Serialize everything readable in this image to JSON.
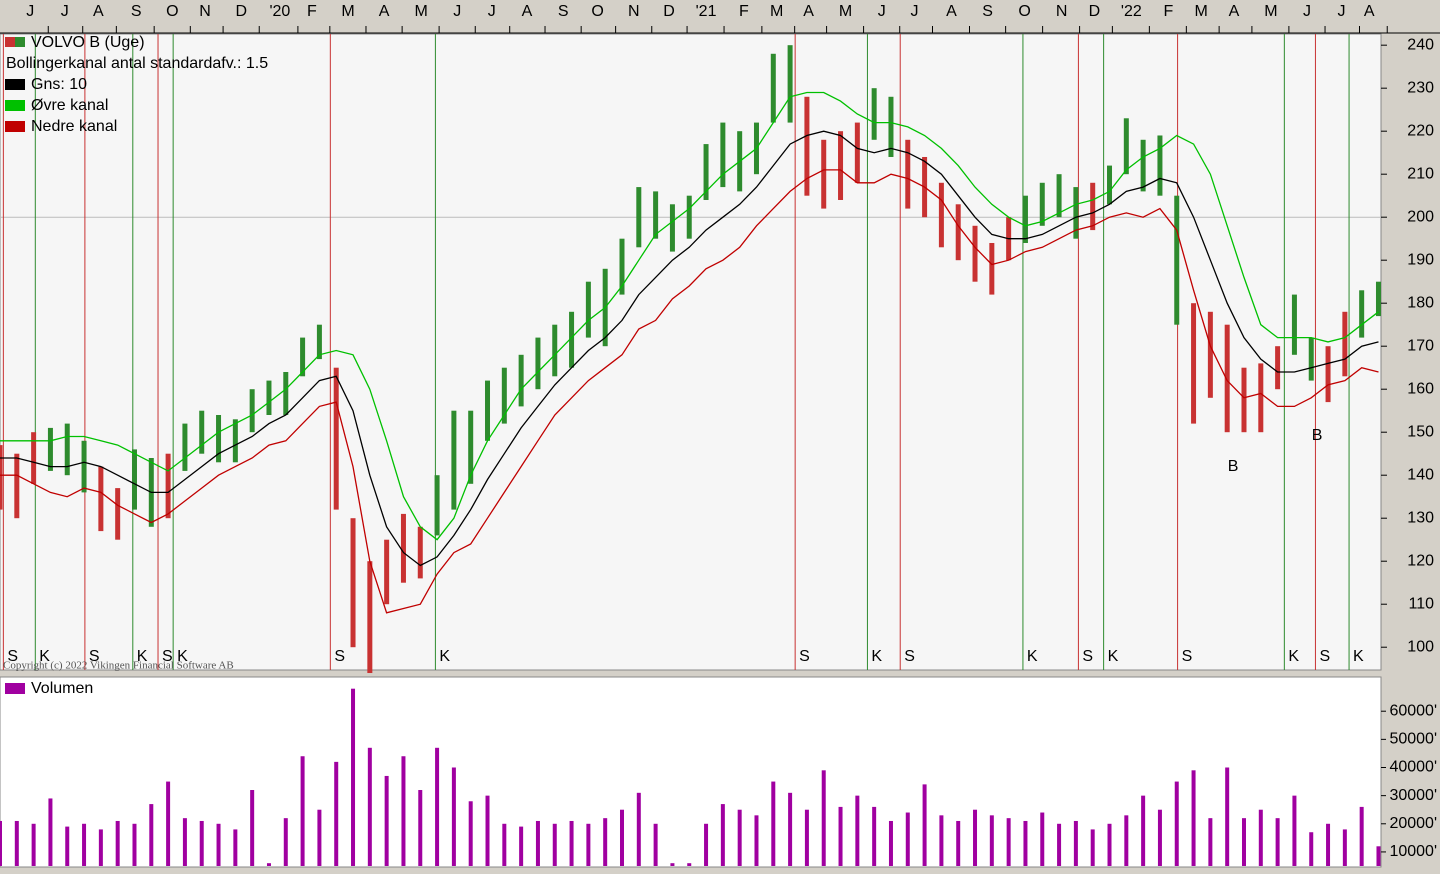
{
  "chart_data": [
    {
      "type": "ohlc",
      "title": "VOLVO B (Uge)",
      "subtitle": "Bollingerkanal antal standardafv.: 1.5",
      "copyright": "Copyright (c) 2022 Vikingen Financial Software AB",
      "x": [
        0,
        2,
        4,
        6,
        8,
        10,
        12,
        14,
        16,
        18,
        20,
        22,
        24,
        26,
        28,
        30,
        32,
        34,
        36,
        38,
        40,
        42,
        44,
        46,
        48,
        50,
        52,
        54,
        56,
        58,
        60,
        62,
        64,
        66,
        68,
        70,
        72,
        74,
        76,
        78,
        80,
        82,
        84,
        86,
        88,
        90,
        92,
        94,
        96,
        98,
        100,
        102,
        104,
        106,
        108,
        110,
        112,
        114,
        116,
        118,
        120,
        122,
        124,
        126,
        128,
        130,
        132,
        134,
        136,
        138,
        140,
        142,
        144,
        146,
        148,
        150,
        152,
        154,
        156,
        158,
        160,
        162,
        164
      ],
      "high": [
        147,
        145,
        150,
        151,
        152,
        148,
        142,
        137,
        146,
        144,
        145,
        152,
        155,
        154,
        153,
        160,
        162,
        164,
        172,
        175,
        165,
        130,
        120,
        125,
        131,
        128,
        140,
        155,
        155,
        162,
        165,
        168,
        172,
        175,
        178,
        185,
        188,
        195,
        207,
        206,
        203,
        205,
        217,
        222,
        220,
        222,
        238,
        240,
        228,
        218,
        220,
        222,
        230,
        228,
        218,
        214,
        208,
        203,
        198,
        194,
        200,
        205,
        208,
        210,
        207,
        208,
        212,
        223,
        218,
        219,
        205,
        180,
        178,
        175,
        165,
        166,
        170,
        182,
        172,
        170,
        178,
        183,
        185
      ],
      "low": [
        132,
        130,
        138,
        141,
        140,
        136,
        127,
        125,
        132,
        128,
        130,
        141,
        145,
        143,
        143,
        150,
        154,
        154,
        163,
        167,
        132,
        100,
        94,
        110,
        115,
        116,
        126,
        132,
        138,
        148,
        152,
        156,
        160,
        163,
        165,
        172,
        170,
        182,
        193,
        195,
        192,
        195,
        204,
        207,
        206,
        210,
        222,
        222,
        205,
        202,
        204,
        208,
        218,
        214,
        202,
        200,
        193,
        190,
        185,
        182,
        190,
        194,
        198,
        200,
        195,
        197,
        203,
        210,
        206,
        205,
        175,
        152,
        158,
        150,
        150,
        150,
        160,
        168,
        162,
        157,
        163,
        172,
        177
      ],
      "series": [
        {
          "name": "Gns: 10",
          "color": "#000000",
          "values": [
            144,
            144,
            143,
            142,
            142,
            143,
            142,
            140,
            138,
            136,
            136,
            139,
            142,
            145,
            147,
            149,
            152,
            154,
            158,
            162,
            163,
            155,
            140,
            128,
            122,
            119,
            121,
            126,
            132,
            139,
            145,
            151,
            156,
            161,
            165,
            169,
            172,
            176,
            182,
            186,
            190,
            193,
            197,
            200,
            203,
            207,
            212,
            217,
            219,
            220,
            219,
            216,
            215,
            216,
            215,
            213,
            210,
            205,
            200,
            196,
            195,
            195,
            196,
            198,
            200,
            201,
            203,
            206,
            207,
            209,
            208,
            200,
            190,
            180,
            172,
            167,
            164,
            164,
            165,
            166,
            167,
            170,
            171
          ]
        },
        {
          "name": "Øvre kanal",
          "color": "#00c000",
          "values": [
            148,
            148,
            148,
            148,
            149,
            149,
            148,
            147,
            145,
            143,
            141,
            144,
            147,
            150,
            152,
            154,
            157,
            160,
            164,
            168,
            169,
            168,
            160,
            148,
            135,
            128,
            125,
            130,
            140,
            148,
            154,
            160,
            164,
            168,
            172,
            176,
            179,
            184,
            190,
            196,
            199,
            202,
            206,
            210,
            213,
            216,
            222,
            228,
            229,
            229,
            227,
            224,
            222,
            222,
            221,
            219,
            216,
            212,
            207,
            203,
            200,
            198,
            199,
            201,
            203,
            204,
            206,
            211,
            214,
            216,
            219,
            217,
            210,
            198,
            186,
            175,
            172,
            172,
            172,
            171,
            172,
            175,
            178
          ]
        },
        {
          "name": "Nedre kanal",
          "color": "#c00000",
          "values": [
            140,
            140,
            138,
            136,
            135,
            137,
            136,
            133,
            131,
            129,
            131,
            134,
            137,
            140,
            142,
            144,
            147,
            148,
            152,
            156,
            157,
            142,
            120,
            108,
            109,
            110,
            117,
            122,
            124,
            130,
            136,
            142,
            148,
            154,
            158,
            162,
            165,
            168,
            174,
            176,
            181,
            184,
            188,
            190,
            193,
            198,
            202,
            206,
            209,
            211,
            211,
            208,
            208,
            210,
            209,
            207,
            204,
            198,
            193,
            189,
            190,
            192,
            193,
            195,
            197,
            198,
            200,
            201,
            200,
            202,
            197,
            183,
            170,
            162,
            158,
            159,
            156,
            156,
            158,
            161,
            162,
            165,
            164
          ]
        }
      ],
      "signals": [
        {
          "x": 0.4,
          "label": "S",
          "color": "#c83232"
        },
        {
          "x": 4.2,
          "label": "K",
          "color": "#2e8b2e"
        },
        {
          "x": 10.1,
          "label": "S",
          "color": "#c83232"
        },
        {
          "x": 15.8,
          "label": "K",
          "color": "#2e8b2e"
        },
        {
          "x": 18.8,
          "label": "S",
          "color": "#c83232"
        },
        {
          "x": 20.6,
          "label": "K",
          "color": "#2e8b2e"
        },
        {
          "x": 39.3,
          "label": "S",
          "color": "#c83232"
        },
        {
          "x": 51.8,
          "label": "K",
          "color": "#2e8b2e"
        },
        {
          "x": 94.6,
          "label": "S",
          "color": "#c83232"
        },
        {
          "x": 103.2,
          "label": "K",
          "color": "#2e8b2e"
        },
        {
          "x": 107.1,
          "label": "S",
          "color": "#c83232"
        },
        {
          "x": 121.7,
          "label": "K",
          "color": "#2e8b2e"
        },
        {
          "x": 128.3,
          "label": "S",
          "color": "#c83232"
        },
        {
          "x": 131.3,
          "label": "K",
          "color": "#2e8b2e"
        },
        {
          "x": 140.1,
          "label": "S",
          "color": "#c83232"
        },
        {
          "x": 152.8,
          "label": "K",
          "color": "#2e8b2e"
        },
        {
          "x": 156.5,
          "label": "S",
          "color": "#c83232"
        },
        {
          "x": 160.5,
          "label": "K",
          "color": "#2e8b2e"
        }
      ],
      "annotations": [
        {
          "x": 146.7,
          "y": 142,
          "text": "B"
        },
        {
          "x": 156.7,
          "y": 149.2,
          "text": "B"
        }
      ],
      "xlim": [
        0,
        164.3
      ],
      "xticks": [
        {
          "value": 3.6,
          "label": "J"
        },
        {
          "value": 7.7,
          "label": "J"
        },
        {
          "value": 11.7,
          "label": "A"
        },
        {
          "value": 16.2,
          "label": "S"
        },
        {
          "value": 20.5,
          "label": "O"
        },
        {
          "value": 24.4,
          "label": "N"
        },
        {
          "value": 28.7,
          "label": "D"
        },
        {
          "value": 33.3,
          "label": "'20"
        },
        {
          "value": 37.1,
          "label": "F"
        },
        {
          "value": 41.4,
          "label": "M"
        },
        {
          "value": 45.7,
          "label": "A"
        },
        {
          "value": 50.1,
          "label": "M"
        },
        {
          "value": 54.4,
          "label": "J"
        },
        {
          "value": 58.5,
          "label": "J"
        },
        {
          "value": 62.7,
          "label": "A"
        },
        {
          "value": 67.0,
          "label": "S"
        },
        {
          "value": 71.1,
          "label": "O"
        },
        {
          "value": 75.4,
          "label": "N"
        },
        {
          "value": 79.6,
          "label": "D"
        },
        {
          "value": 84.0,
          "label": "'21"
        },
        {
          "value": 88.5,
          "label": "F"
        },
        {
          "value": 92.4,
          "label": "M"
        },
        {
          "value": 96.2,
          "label": "A"
        },
        {
          "value": 100.6,
          "label": "M"
        },
        {
          "value": 104.9,
          "label": "J"
        },
        {
          "value": 108.8,
          "label": "J"
        },
        {
          "value": 113.2,
          "label": "A"
        },
        {
          "value": 117.5,
          "label": "S"
        },
        {
          "value": 121.9,
          "label": "O"
        },
        {
          "value": 126.3,
          "label": "N"
        },
        {
          "value": 130.2,
          "label": "D"
        },
        {
          "value": 134.6,
          "label": "'22"
        },
        {
          "value": 139.0,
          "label": "F"
        },
        {
          "value": 142.9,
          "label": "M"
        },
        {
          "value": 146.8,
          "label": "A"
        },
        {
          "value": 151.2,
          "label": "M"
        },
        {
          "value": 155.5,
          "label": "J"
        },
        {
          "value": 159.6,
          "label": "J"
        },
        {
          "value": 162.9,
          "label": "A"
        }
      ],
      "ylim": [
        94.7,
        242.6
      ],
      "yticks": [
        100,
        110,
        120,
        130,
        140,
        150,
        160,
        170,
        180,
        190,
        200,
        210,
        220,
        230,
        240
      ],
      "reference_line": 200
    },
    {
      "type": "volume",
      "title": "Volumen",
      "color": "#a000a0",
      "x": [
        0,
        2,
        4,
        6,
        8,
        10,
        12,
        14,
        16,
        18,
        20,
        22,
        24,
        26,
        28,
        30,
        32,
        34,
        36,
        38,
        40,
        42,
        44,
        46,
        48,
        50,
        52,
        54,
        56,
        58,
        60,
        62,
        64,
        66,
        68,
        70,
        72,
        74,
        76,
        78,
        80,
        82,
        84,
        86,
        88,
        90,
        92,
        94,
        96,
        98,
        100,
        102,
        104,
        106,
        108,
        110,
        112,
        114,
        116,
        118,
        120,
        122,
        124,
        126,
        128,
        130,
        132,
        134,
        136,
        138,
        140,
        142,
        144,
        146,
        148,
        150,
        152,
        154,
        156,
        158,
        160,
        162,
        164
      ],
      "values": [
        21000,
        21000,
        20000,
        29000,
        19000,
        20000,
        18000,
        21000,
        20000,
        27000,
        35000,
        22000,
        21000,
        20000,
        18000,
        32000,
        6000,
        22000,
        44000,
        25000,
        42000,
        68000,
        47000,
        37000,
        44000,
        32000,
        47000,
        40000,
        28000,
        30000,
        20000,
        19000,
        21000,
        20000,
        21000,
        20000,
        22000,
        25000,
        31000,
        20000,
        6000,
        6000,
        20000,
        27000,
        25000,
        23000,
        35000,
        31000,
        25000,
        39000,
        26000,
        30000,
        26000,
        21000,
        24000,
        34000,
        23000,
        21000,
        25000,
        23000,
        22000,
        21000,
        24000,
        20000,
        21000,
        18000,
        20000,
        23000,
        30000,
        25000,
        35000,
        39000,
        22000,
        40000,
        22000,
        25000,
        22000,
        30000,
        17000,
        20000,
        18000,
        26000,
        12000
      ],
      "xlim": [
        0,
        164.3
      ],
      "ylim": [
        5000,
        71800
      ],
      "yticks": [
        {
          "value": 10000,
          "label": "10000'"
        },
        {
          "value": 20000,
          "label": "20000'"
        },
        {
          "value": 30000,
          "label": "30000'"
        },
        {
          "value": 40000,
          "label": "40000'"
        },
        {
          "value": 50000,
          "label": "50000'"
        },
        {
          "value": 60000,
          "label": "60000'"
        }
      ]
    }
  ]
}
